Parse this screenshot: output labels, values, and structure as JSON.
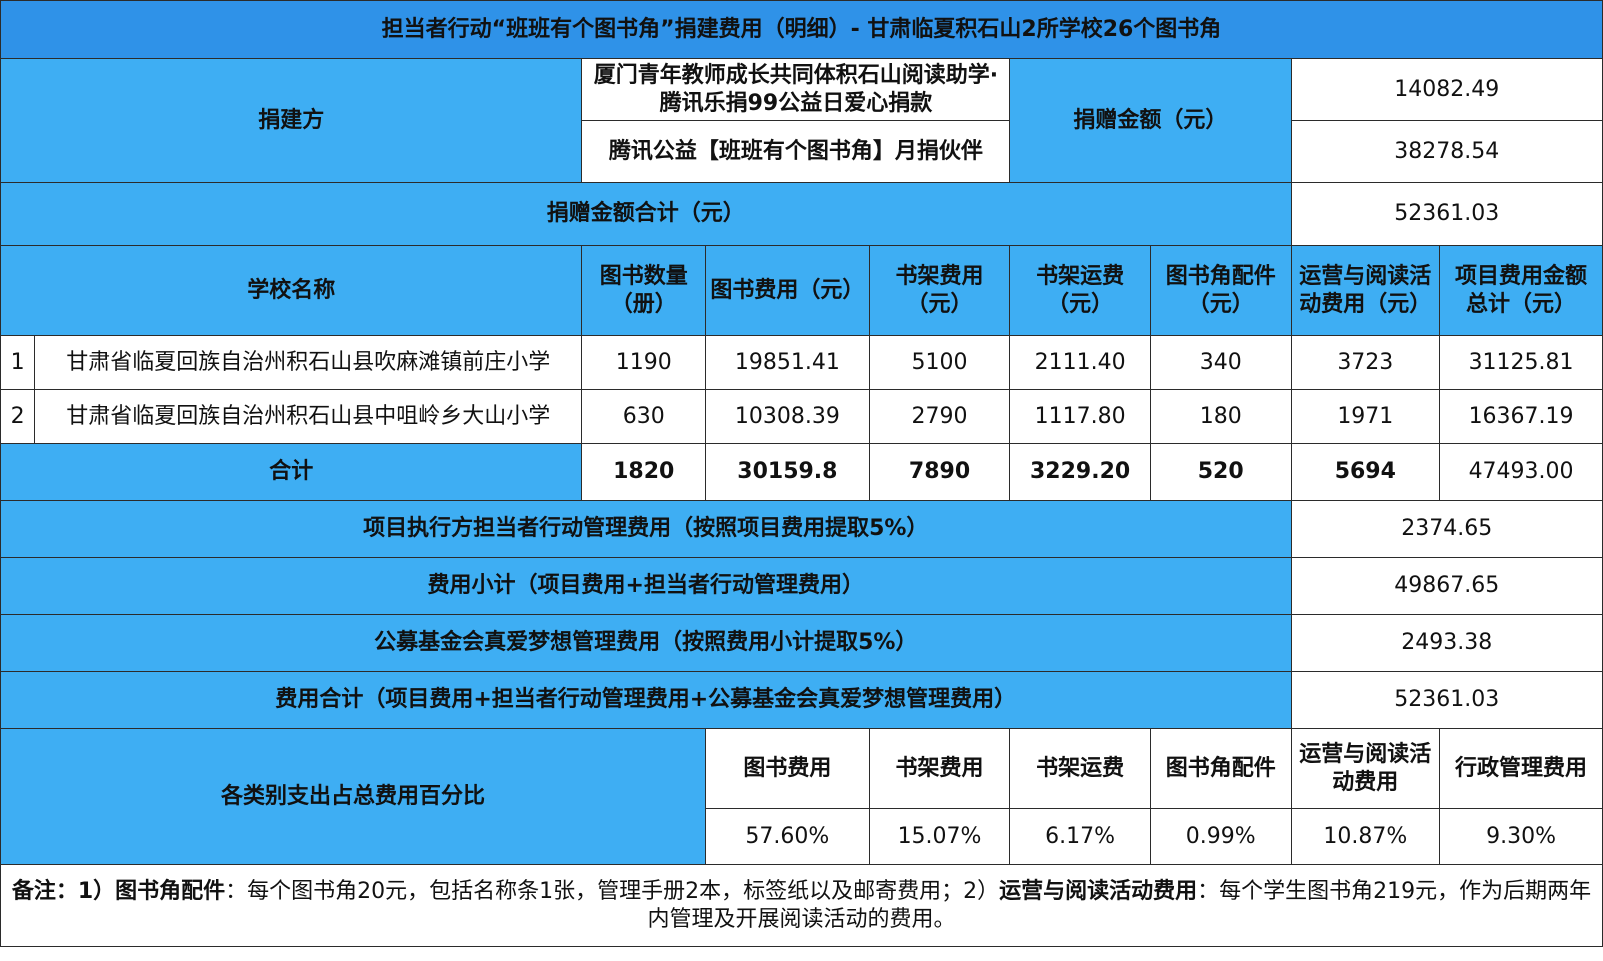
{
  "title": "担当者行动“班班有个图书角”捐建费用（明细）- 甘肃临夏积石山2所学校26个图书角",
  "donor_section": {
    "label": "捐建方",
    "donors": [
      "厦门青年教师成长共同体积石山阅读助学·　腾讯乐捐99公益日爱心捐款",
      "腾讯公益【班班有个图书角】月捐伙伴"
    ],
    "amount_label": "捐赠金额（元）",
    "amounts": [
      "14082.49",
      "38278.54"
    ],
    "total_label": "捐赠金额合计（元）",
    "total_value": "52361.03"
  },
  "table": {
    "headers": {
      "school": "学校名称",
      "books_count": "图书数量（册）",
      "books_cost": "图书费用（元）",
      "shelf_cost": "书架费用（元）",
      "shelf_shipping": "书架运费（元）",
      "accessories": "图书角配件（元）",
      "operations": "运营与阅读活动费用（元）",
      "project_total": "项目费用金额总计（元）"
    },
    "rows": [
      {
        "index": "1",
        "school": "甘肃省临夏回族自治州积石山县吹麻滩镇前庄小学",
        "books_count": "1190",
        "books_cost": "19851.41",
        "shelf_cost": "5100",
        "shelf_shipping": "2111.40",
        "accessories": "340",
        "operations": "3723",
        "project_total": "31125.81"
      },
      {
        "index": "2",
        "school": "甘肃省临夏回族自治州积石山县中咀岭乡大山小学",
        "books_count": "630",
        "books_cost": "10308.39",
        "shelf_cost": "2790",
        "shelf_shipping": "1117.80",
        "accessories": "180",
        "operations": "1971",
        "project_total": "16367.19"
      }
    ],
    "totals": {
      "label": "合计",
      "books_count": "1820",
      "books_cost": "30159.8",
      "shelf_cost": "7890",
      "shelf_shipping": "3229.20",
      "accessories": "520",
      "operations": "5694",
      "project_total": "47493.00"
    }
  },
  "fees": [
    {
      "label": "项目执行方担当者行动管理费用（按照项目费用提取5%）",
      "value": "2374.65"
    },
    {
      "label": "费用小计（项目费用+担当者行动管理费用）",
      "value": "49867.65"
    },
    {
      "label": "公募基金会真爱梦想管理费用（按照费用小计提取5%）",
      "value": "2493.38"
    },
    {
      "label": "费用合计（项目费用+担当者行动管理费用+公募基金会真爱梦想管理费用）",
      "value": "52361.03"
    }
  ],
  "percent": {
    "label": "各类别支出占总费用百分比",
    "headers": [
      "图书费用",
      "书架费用",
      "书架运费",
      "图书角配件",
      "运营与阅读活动费用",
      "行政管理费用"
    ],
    "values": [
      "57.60%",
      "15.07%",
      "6.17%",
      "0.99%",
      "10.87%",
      "9.30%"
    ]
  },
  "note": {
    "prefix": "备注：1）",
    "term1": "图书角配件",
    "text1": "：每个图书角20元，包括名称条1张，管理手册2本，标签纸以及邮寄费用；2）",
    "term2": "运营与阅读活动费用",
    "text2": "：每个学生图书角219元，作为后期两年内管理及开展阅读活动的费用。"
  },
  "colors": {
    "title_bg": "#2f92e8",
    "header_bg": "#3eaef3",
    "highlight_text": "#ff1a1a"
  }
}
